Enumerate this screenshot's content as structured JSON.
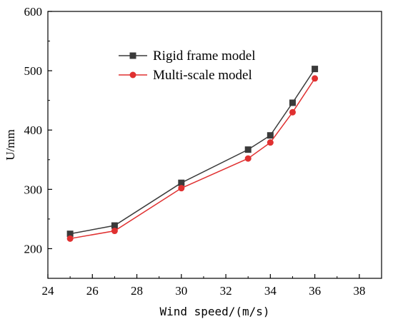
{
  "chart_data": {
    "type": "line",
    "xlabel": "Wind speed/(m/s)",
    "ylabel": "U/mm",
    "xlim": [
      24,
      39
    ],
    "ylim": [
      150,
      600
    ],
    "xticks": [
      24,
      26,
      28,
      30,
      32,
      34,
      36,
      38
    ],
    "yticks": [
      200,
      300,
      400,
      500,
      600
    ],
    "grid": false,
    "legend_position": "top-left inside",
    "series": [
      {
        "name": "Rigid frame model",
        "color": "#3a3a3a",
        "marker": "square",
        "x": [
          25,
          27,
          30,
          33,
          34,
          35,
          36
        ],
        "y": [
          225,
          239,
          311,
          367,
          391,
          446,
          503
        ]
      },
      {
        "name": "Multi-scale model",
        "color": "#e03030",
        "marker": "circle",
        "x": [
          25,
          27,
          30,
          33,
          34,
          35,
          36
        ],
        "y": [
          217,
          230,
          302,
          352,
          379,
          430,
          487
        ]
      }
    ]
  }
}
